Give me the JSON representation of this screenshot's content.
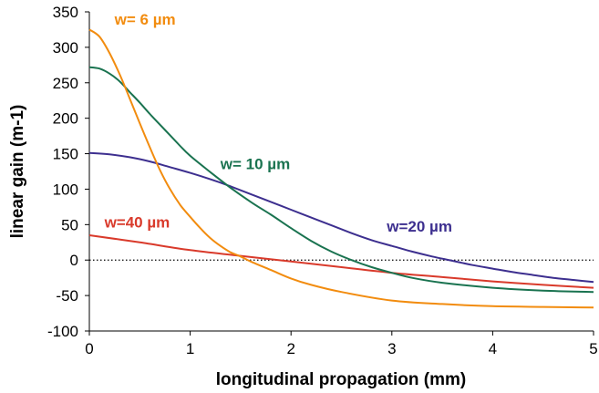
{
  "chart_data": {
    "type": "line",
    "xlabel": "longitudinal propagation (mm)",
    "ylabel": "linear gain (m-1)",
    "xlim": [
      0,
      5
    ],
    "ylim": [
      -100,
      350
    ],
    "xticks": [
      0,
      1,
      2,
      3,
      4,
      5
    ],
    "yticks": [
      -100,
      -50,
      0,
      50,
      100,
      150,
      200,
      250,
      300,
      350
    ],
    "zero_reference_line": "dotted",
    "grid": false,
    "legend": "none (series labeled inline)",
    "series": [
      {
        "name": "w= 6 µm",
        "color": "#F28C0F",
        "x": [
          0,
          0.1,
          0.2,
          0.3,
          0.4,
          0.5,
          0.6,
          0.7,
          0.8,
          0.9,
          1.0,
          1.1,
          1.2,
          1.3,
          1.4,
          1.5,
          1.6,
          1.8,
          2.0,
          2.2,
          2.5,
          3.0,
          3.5,
          4.0,
          4.5,
          5.0
        ],
        "y": [
          325,
          315,
          292,
          262,
          228,
          193,
          159,
          127,
          100,
          78,
          61,
          45,
          31,
          20,
          11,
          5,
          -2,
          -14,
          -26,
          -35,
          -45,
          -57,
          -62,
          -65,
          -66,
          -67
        ]
      },
      {
        "name": "w= 10 µm",
        "color": "#1A7350",
        "x": [
          0,
          0.1,
          0.2,
          0.3,
          0.4,
          0.5,
          0.6,
          0.7,
          0.8,
          0.9,
          1.0,
          1.2,
          1.4,
          1.6,
          1.8,
          2.0,
          2.2,
          2.4,
          2.6,
          2.8,
          3.0,
          3.2,
          3.5,
          4.0,
          4.5,
          5.0
        ],
        "y": [
          272,
          270,
          263,
          252,
          237,
          222,
          206,
          191,
          176,
          161,
          147,
          124,
          102,
          82,
          64,
          45,
          27,
          12,
          0,
          -10,
          -18,
          -25,
          -32,
          -39,
          -43,
          -45
        ]
      },
      {
        "name": "w=20 µm",
        "color": "#3D2F8F",
        "x": [
          0,
          0.2,
          0.4,
          0.6,
          0.8,
          1.0,
          1.2,
          1.4,
          1.6,
          1.8,
          2.0,
          2.2,
          2.4,
          2.6,
          2.8,
          3.0,
          3.2,
          3.4,
          3.6,
          3.8,
          4.0,
          4.2,
          4.4,
          4.6,
          4.8,
          5.0
        ],
        "y": [
          151,
          149,
          145,
          139,
          131,
          123,
          114,
          104,
          93,
          82,
          71,
          60,
          49,
          38,
          28,
          20,
          12,
          5,
          -1,
          -7,
          -12,
          -17,
          -21,
          -25,
          -28,
          -31
        ]
      },
      {
        "name": "w=40 µm",
        "color": "#D93A2B",
        "x": [
          0,
          0.5,
          1.0,
          1.5,
          2.0,
          2.5,
          3.0,
          3.5,
          4.0,
          4.5,
          5.0
        ],
        "y": [
          35,
          25,
          14,
          6,
          -2,
          -10,
          -18,
          -24,
          -30,
          -35,
          -39
        ]
      }
    ],
    "series_label_anchors": [
      {
        "x": 0.25,
        "y": 332
      },
      {
        "x": 1.3,
        "y": 128
      },
      {
        "x": 2.95,
        "y": 40
      },
      {
        "x": 0.15,
        "y": 46
      }
    ]
  }
}
